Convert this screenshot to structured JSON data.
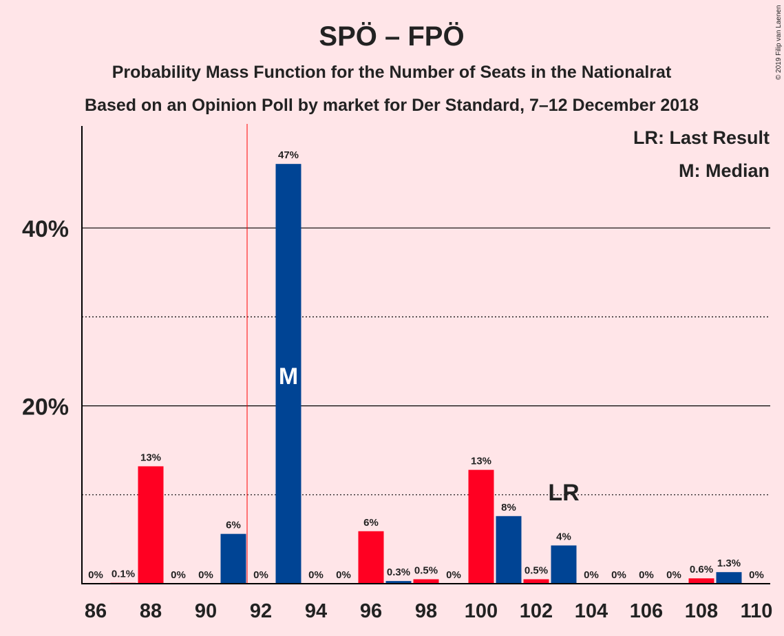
{
  "title": "SPÖ – FPÖ",
  "subtitle1": "Probability Mass Function for the Number of Seats in the Nationalrat",
  "subtitle2": "Based on an Opinion Poll by market for Der Standard, 7–12 December 2018",
  "copyright": "© 2019 Filip van Laenen",
  "legend": {
    "last_result": "LR: Last Result",
    "median": "M: Median"
  },
  "markers": {
    "median_label": "M",
    "median_seat": 93,
    "last_result_label": "LR",
    "last_result_seat": 103,
    "majority_line_seat": 91.5
  },
  "colors": {
    "background": "#ffe5e8",
    "red": "#ff0022",
    "blue": "#004494",
    "majority_line": "#ff0000",
    "axis": "#000000"
  },
  "chart_data": {
    "type": "bar",
    "x": [
      86,
      87,
      88,
      89,
      90,
      91,
      92,
      93,
      94,
      95,
      96,
      97,
      98,
      99,
      100,
      101,
      102,
      103,
      104,
      105,
      106,
      107,
      108,
      109,
      110
    ],
    "values": [
      0,
      0.1,
      13.2,
      0,
      0,
      5.6,
      0,
      47.2,
      0,
      0,
      5.9,
      0.3,
      0.5,
      0,
      12.8,
      7.6,
      0.5,
      4.3,
      0,
      0,
      0,
      0,
      0.6,
      1.3,
      0
    ],
    "labels": [
      "0%",
      "0.1%",
      "13%",
      "0%",
      "0%",
      "6%",
      "0%",
      "47%",
      "0%",
      "0%",
      "6%",
      "0.3%",
      "0.5%",
      "0%",
      "13%",
      "8%",
      "0.5%",
      "4%",
      "0%",
      "0%",
      "0%",
      "0%",
      "0.6%",
      "1.3%",
      "0%"
    ],
    "bar_colors": [
      "red",
      "red",
      "red",
      "blue",
      "red",
      "blue",
      "red",
      "blue",
      "red",
      "blue",
      "red",
      "blue",
      "red",
      "blue",
      "red",
      "blue",
      "red",
      "blue",
      "red",
      "blue",
      "red",
      "blue",
      "red",
      "blue",
      "red"
    ],
    "xticks": [
      86,
      88,
      90,
      92,
      94,
      96,
      98,
      100,
      102,
      104,
      106,
      108,
      110
    ],
    "xtick_labels": [
      "86",
      "88",
      "90",
      "92",
      "94",
      "96",
      "98",
      "100",
      "102",
      "104",
      "106",
      "108",
      "110"
    ],
    "ylim": [
      0,
      52
    ],
    "yticks_major": [
      20,
      40
    ],
    "ytick_labels": [
      "20%",
      "40%"
    ],
    "yticks_minor": [
      10,
      30
    ],
    "grid": true
  }
}
